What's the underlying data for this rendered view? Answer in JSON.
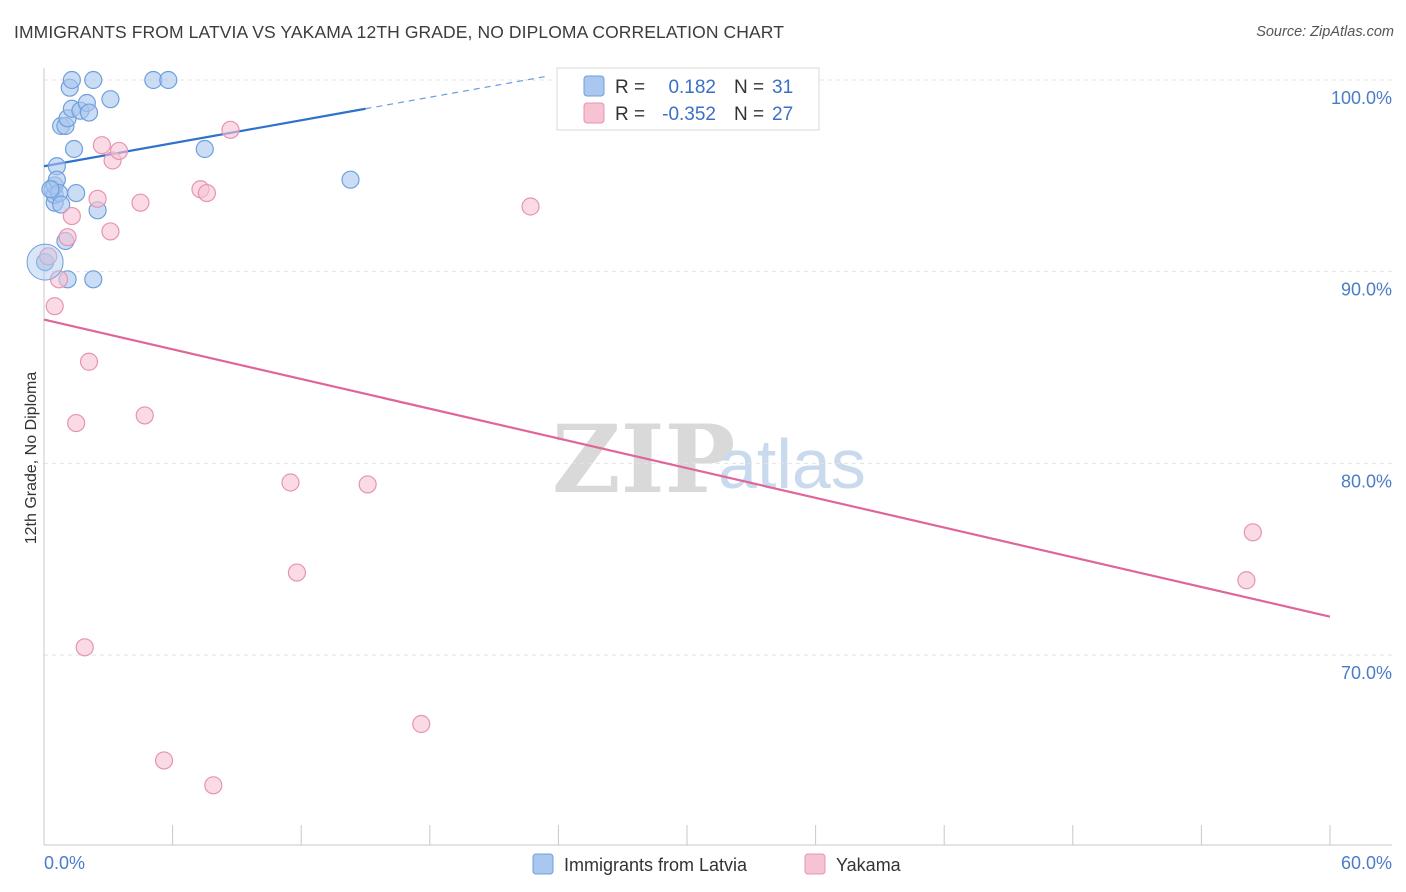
{
  "chart_data": {
    "type": "scatter",
    "title": "IMMIGRANTS FROM LATVIA VS YAKAMA 12TH GRADE, NO DIPLOMA CORRELATION CHART",
    "source": "Source: ZipAtlas.com",
    "xlabel": "",
    "ylabel": "12th Grade, No Diploma",
    "xlim": [
      0,
      60
    ],
    "ylim": [
      61,
      101.5
    ],
    "x_tick_labels": {
      "min": "0.0%",
      "max": "60.0%"
    },
    "y_ticks": [
      {
        "value": 100,
        "label": "100.0%"
      },
      {
        "value": 90,
        "label": "90.0%"
      },
      {
        "value": 80,
        "label": "80.0%"
      },
      {
        "value": 70,
        "label": "70.0%"
      }
    ],
    "stats": [
      {
        "r_label": "R =",
        "r_value": "0.182",
        "n_label": "N =",
        "n_value": "31"
      },
      {
        "r_label": "R =",
        "r_value": "-0.352",
        "n_label": "N =",
        "n_value": "27"
      }
    ],
    "series": [
      {
        "name": "Immigrants from Latvia",
        "color": "#a9c7ef",
        "stroke": "#6f9fdc",
        "line_color": "#2f72cc",
        "trend": {
          "x1": 0,
          "y1": 95.5,
          "x2": 15,
          "y2": 98.5,
          "dash_x2": 23.5,
          "dash_y2": 100.2
        },
        "points": [
          [
            0.4,
            94.3
          ],
          [
            0.5,
            93.6
          ],
          [
            0.5,
            94.0
          ],
          [
            0.5,
            94.5
          ],
          [
            0.6,
            95.5
          ],
          [
            0.6,
            94.8
          ],
          [
            0.7,
            94.1
          ],
          [
            0.8,
            93.5
          ],
          [
            0.8,
            97.6
          ],
          [
            1.0,
            97.6
          ],
          [
            1.0,
            91.6
          ],
          [
            1.1,
            89.6
          ],
          [
            1.1,
            98.0
          ],
          [
            1.2,
            99.6
          ],
          [
            1.3,
            100.0
          ],
          [
            1.3,
            98.5
          ],
          [
            1.4,
            96.4
          ],
          [
            1.5,
            94.1
          ],
          [
            1.7,
            98.4
          ],
          [
            2.0,
            98.8
          ],
          [
            2.1,
            98.3
          ],
          [
            2.3,
            100.0
          ],
          [
            2.3,
            89.6
          ],
          [
            2.5,
            93.2
          ],
          [
            3.1,
            99.0
          ],
          [
            5.1,
            100.0
          ],
          [
            5.8,
            100.0
          ],
          [
            7.5,
            96.4
          ],
          [
            14.3,
            94.8
          ],
          [
            0.05,
            90.5
          ],
          [
            0.3,
            94.3
          ]
        ]
      },
      {
        "name": "Yakama",
        "color": "#f7c3d4",
        "stroke": "#e694b0",
        "line_color": "#e0659a",
        "trend": {
          "x1": 0,
          "y1": 87.5,
          "x2": 60,
          "y2": 72.0
        },
        "points": [
          [
            0.2,
            90.8
          ],
          [
            0.5,
            88.2
          ],
          [
            0.7,
            89.6
          ],
          [
            1.1,
            91.8
          ],
          [
            1.3,
            92.9
          ],
          [
            1.5,
            82.1
          ],
          [
            1.9,
            70.4
          ],
          [
            2.1,
            85.3
          ],
          [
            2.5,
            93.8
          ],
          [
            2.7,
            96.6
          ],
          [
            3.1,
            92.1
          ],
          [
            3.2,
            95.8
          ],
          [
            3.5,
            96.3
          ],
          [
            4.5,
            93.6
          ],
          [
            4.7,
            82.5
          ],
          [
            5.6,
            64.5
          ],
          [
            7.3,
            94.3
          ],
          [
            7.6,
            94.1
          ],
          [
            7.9,
            63.2
          ],
          [
            8.7,
            97.4
          ],
          [
            11.5,
            79.0
          ],
          [
            11.8,
            74.3
          ],
          [
            15.1,
            78.9
          ],
          [
            17.6,
            66.4
          ],
          [
            22.7,
            93.4
          ],
          [
            56.1,
            73.9
          ],
          [
            56.4,
            76.4
          ]
        ]
      }
    ],
    "watermark": {
      "part1": "ZIP",
      "part2": "atlas"
    }
  }
}
